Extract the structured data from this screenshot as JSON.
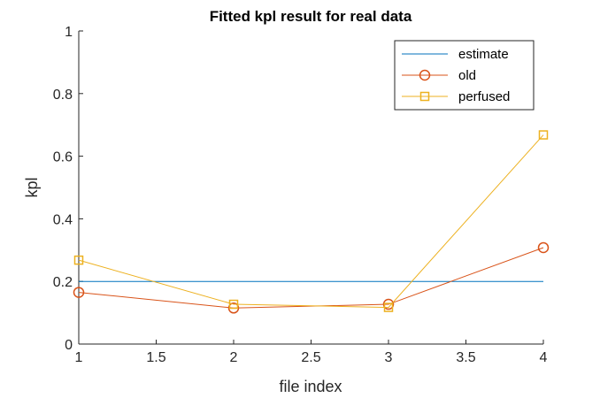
{
  "chart_data": {
    "type": "line",
    "title": "Fitted kpl result for real data",
    "xlabel": "file index",
    "ylabel": "kpl",
    "xlim": [
      1,
      4
    ],
    "ylim": [
      0,
      1
    ],
    "x_ticks": [
      "1",
      "1.5",
      "2",
      "2.5",
      "3",
      "3.5",
      "4"
    ],
    "y_ticks": [
      "0",
      "0.2",
      "0.4",
      "0.6",
      "0.8",
      "1"
    ],
    "grid": false,
    "legend_position": "top-right",
    "x": [
      1,
      2,
      3,
      4
    ],
    "series": [
      {
        "name": "estimate",
        "values": [
          0.2,
          0.2,
          0.2,
          0.2
        ],
        "color": "#0072BD",
        "marker": "none"
      },
      {
        "name": "old",
        "values": [
          0.165,
          0.115,
          0.127,
          0.308
        ],
        "color": "#D95319",
        "marker": "circle"
      },
      {
        "name": "perfused",
        "values": [
          0.268,
          0.127,
          0.117,
          0.668
        ],
        "color": "#EDB120",
        "marker": "square"
      }
    ]
  }
}
